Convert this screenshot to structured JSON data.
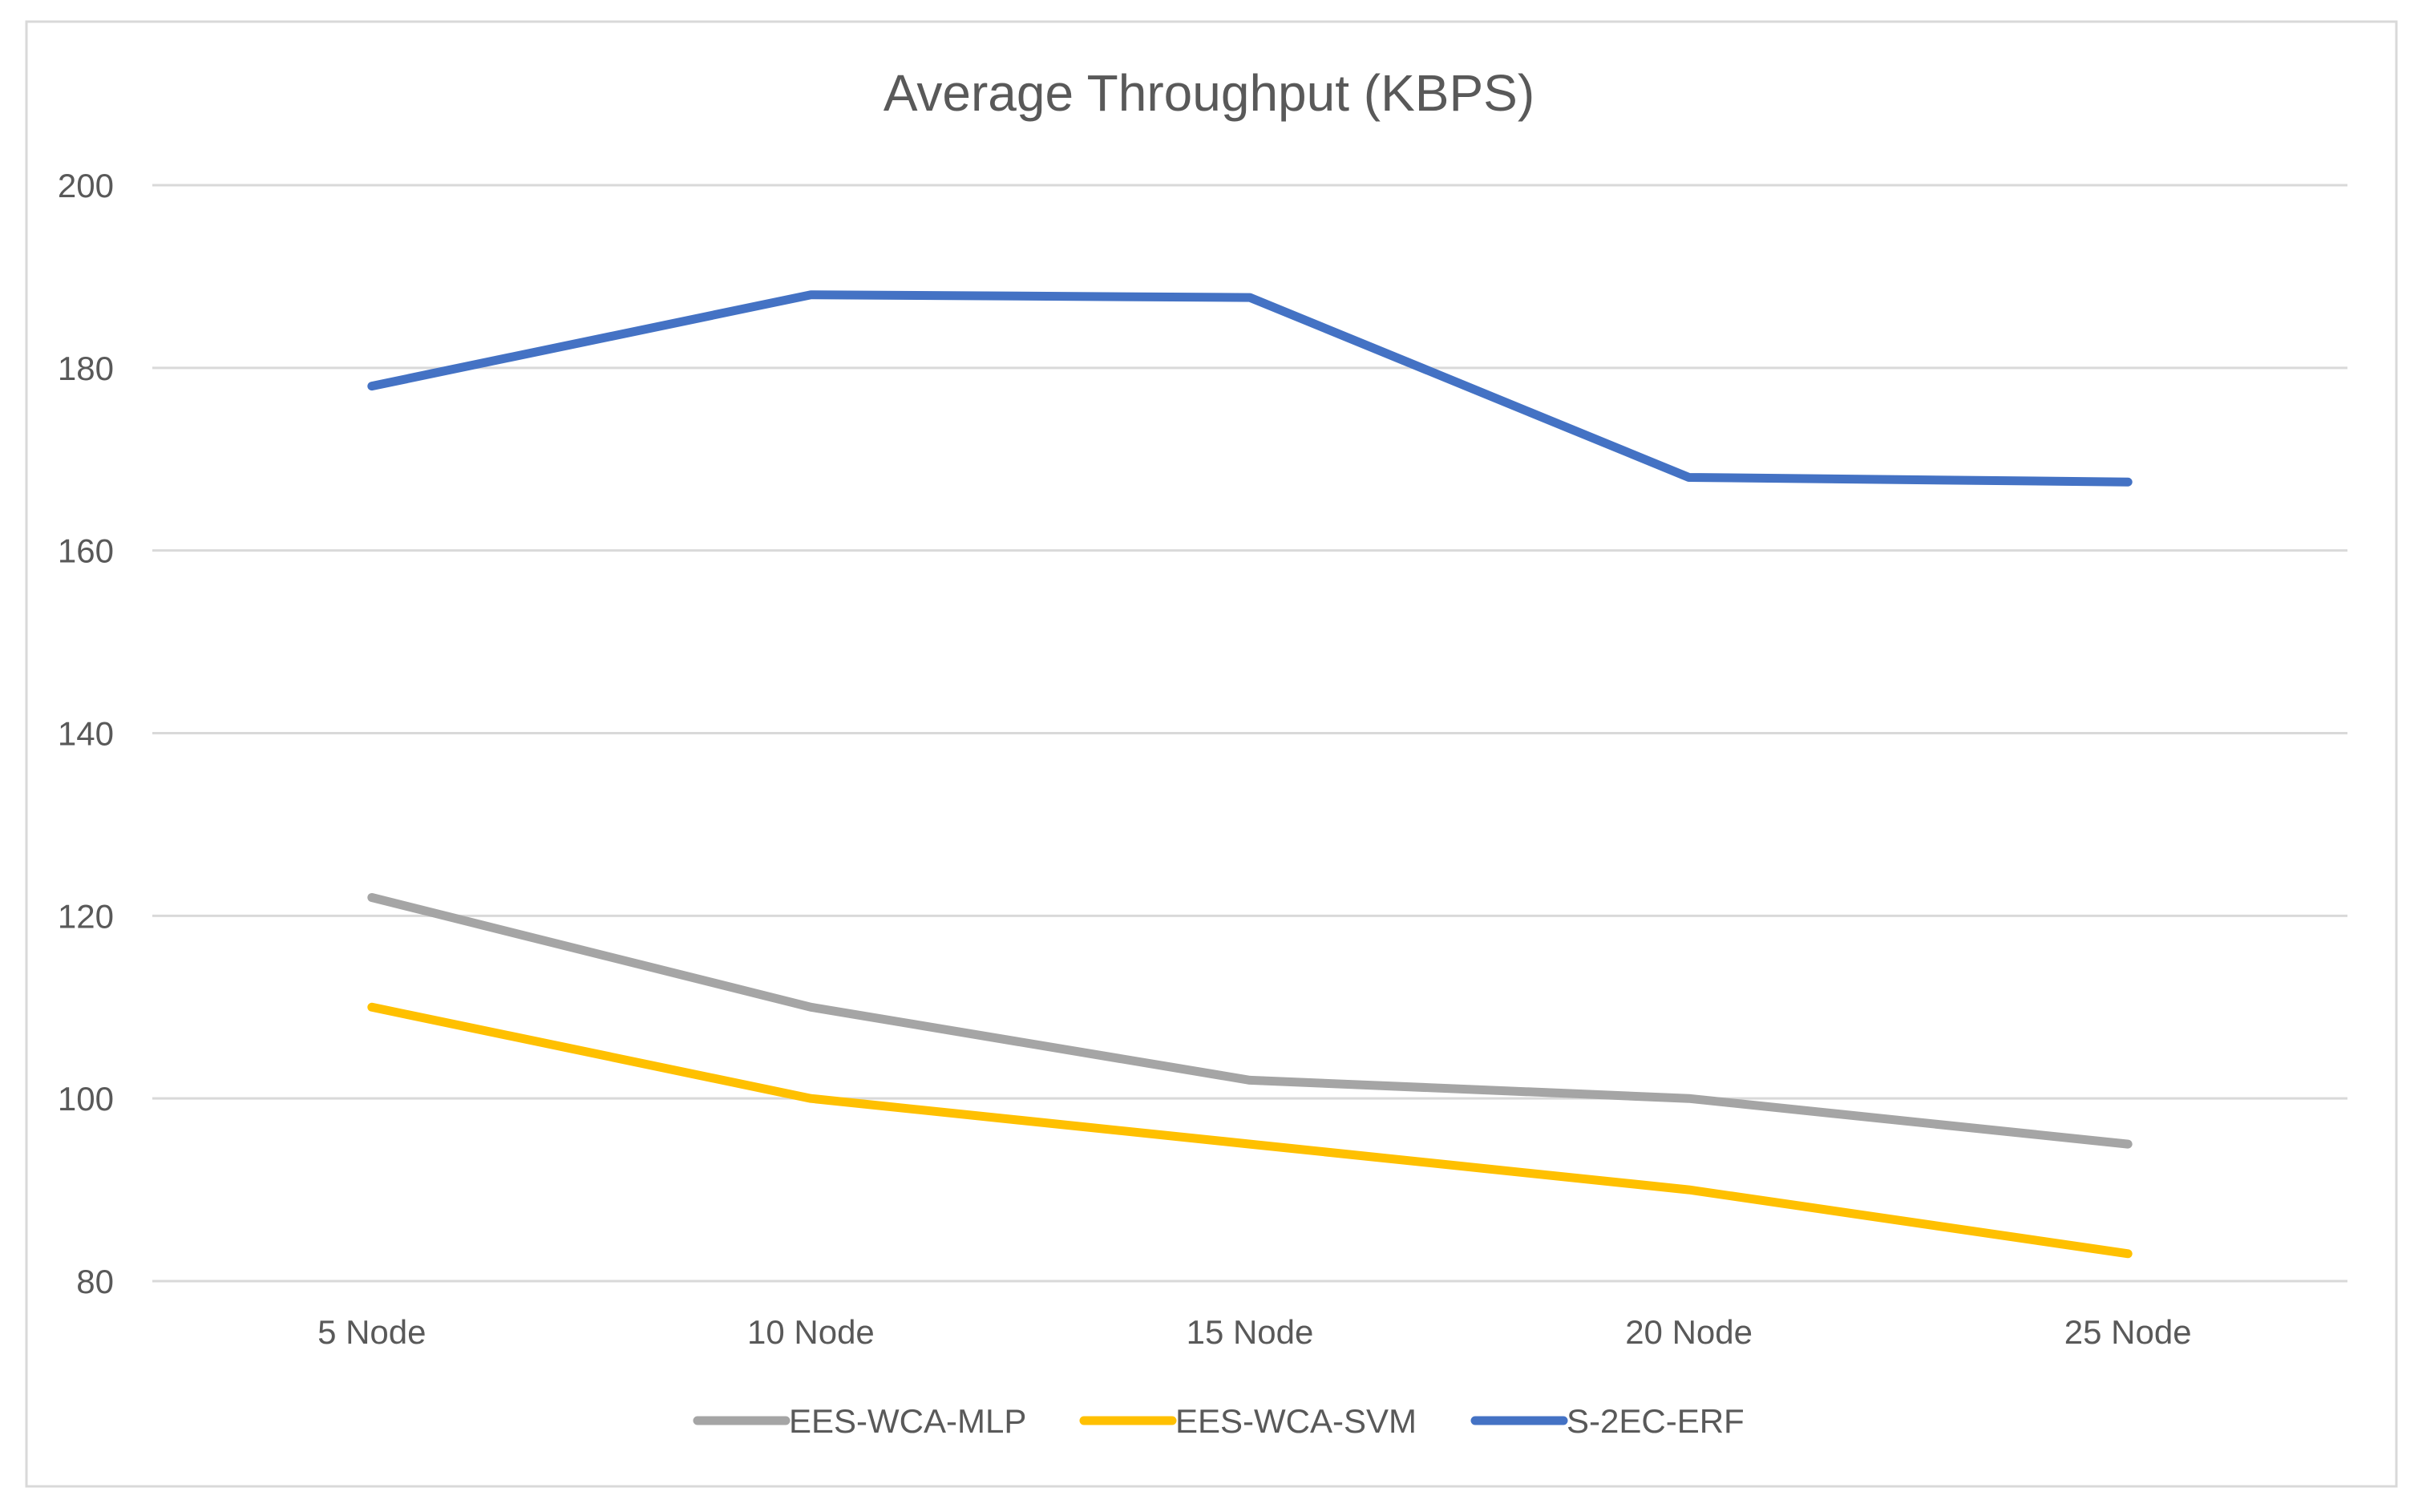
{
  "chart_data": {
    "type": "line",
    "title": "Average Throughput (KBPS)",
    "xlabel": "",
    "ylabel": "",
    "categories": [
      "5  Node",
      "10  Node",
      "15  Node",
      "20  Node",
      "25  Node"
    ],
    "ylim": [
      80,
      200
    ],
    "yticks": [
      80,
      100,
      120,
      140,
      160,
      180,
      200
    ],
    "grid": true,
    "legend_position": "bottom",
    "series": [
      {
        "name": "EES-WCA-MLP",
        "color": "#A5A5A5",
        "values": [
          122,
          110,
          102,
          100,
          95
        ]
      },
      {
        "name": "EES-WCA-SVM",
        "color": "#FFC000",
        "values": [
          110,
          100,
          95,
          90,
          83
        ]
      },
      {
        "name": "S-2EC-ERF",
        "color": "#4472C4",
        "values": [
          178,
          188,
          187.7,
          168,
          167.5
        ]
      }
    ]
  }
}
